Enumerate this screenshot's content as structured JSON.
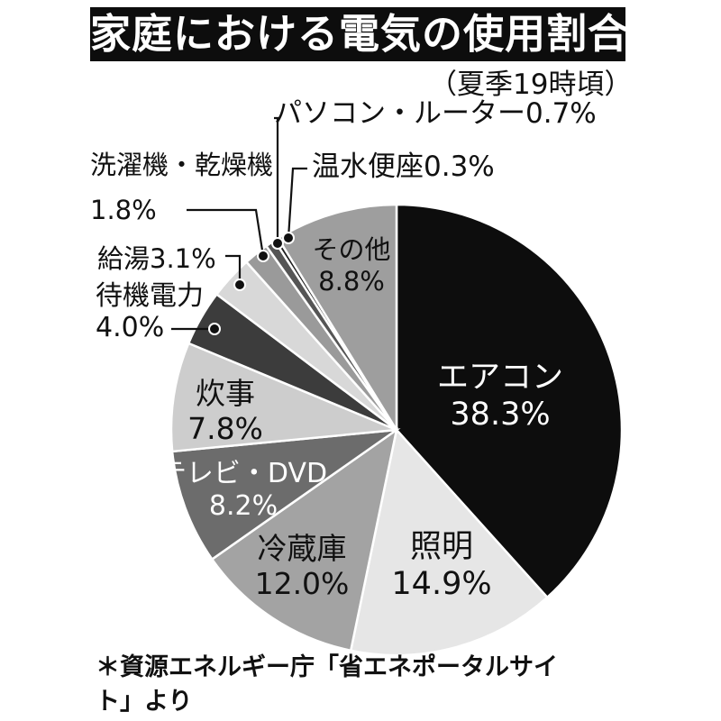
{
  "chart_data": {
    "type": "pie",
    "title": "家庭における電気の使用割合",
    "subtitle": "（夏季19時頃）",
    "start": "12 o'clock",
    "direction": "clockwise",
    "slices": [
      {
        "label": "エアコン",
        "value_label": "38.3%",
        "value": 38.3,
        "color": "#0d0d0d",
        "text_color": "#ffffff"
      },
      {
        "label": "照明",
        "value_label": "14.9%",
        "value": 14.9,
        "color": "#e6e6e6",
        "text_color": "#111111"
      },
      {
        "label": "冷蔵庫",
        "value_label": "12.0%",
        "value": 12.0,
        "color": "#a3a3a3",
        "text_color": "#111111"
      },
      {
        "label": "テレビ・DVD",
        "value_label": "8.2%",
        "value": 8.2,
        "color": "#6c6c6c",
        "text_color": "#ffffff"
      },
      {
        "label": "炊事",
        "value_label": "7.8%",
        "value": 7.8,
        "color": "#cdcdcd",
        "text_color": "#111111"
      },
      {
        "label": "待機電力",
        "value_label": "4.0%",
        "value": 4.0,
        "color": "#3c3c3c",
        "text_color": "#111111"
      },
      {
        "label": "給湯",
        "value_label": "3.1%",
        "value": 3.1,
        "color": "#d8d8d8",
        "text_color": "#111111"
      },
      {
        "label": "洗濯機・乾燥機",
        "value_label": "1.8%",
        "value": 1.8,
        "color": "#9a9a9a",
        "text_color": "#111111"
      },
      {
        "label": "パソコン・ルーター",
        "value_label": "0.7%",
        "value": 0.7,
        "color": "#555555",
        "text_color": "#111111"
      },
      {
        "label": "温水便座",
        "value_label": "0.3%",
        "value": 0.3,
        "color": "#1e1e1e",
        "text_color": "#111111"
      },
      {
        "label": "その他",
        "value_label": "8.8%",
        "value": 8.8,
        "color": "#9e9e9e",
        "text_color": "#111111"
      }
    ]
  },
  "source_note": "＊資源エネルギー庁「省エネポータルサイト」より"
}
